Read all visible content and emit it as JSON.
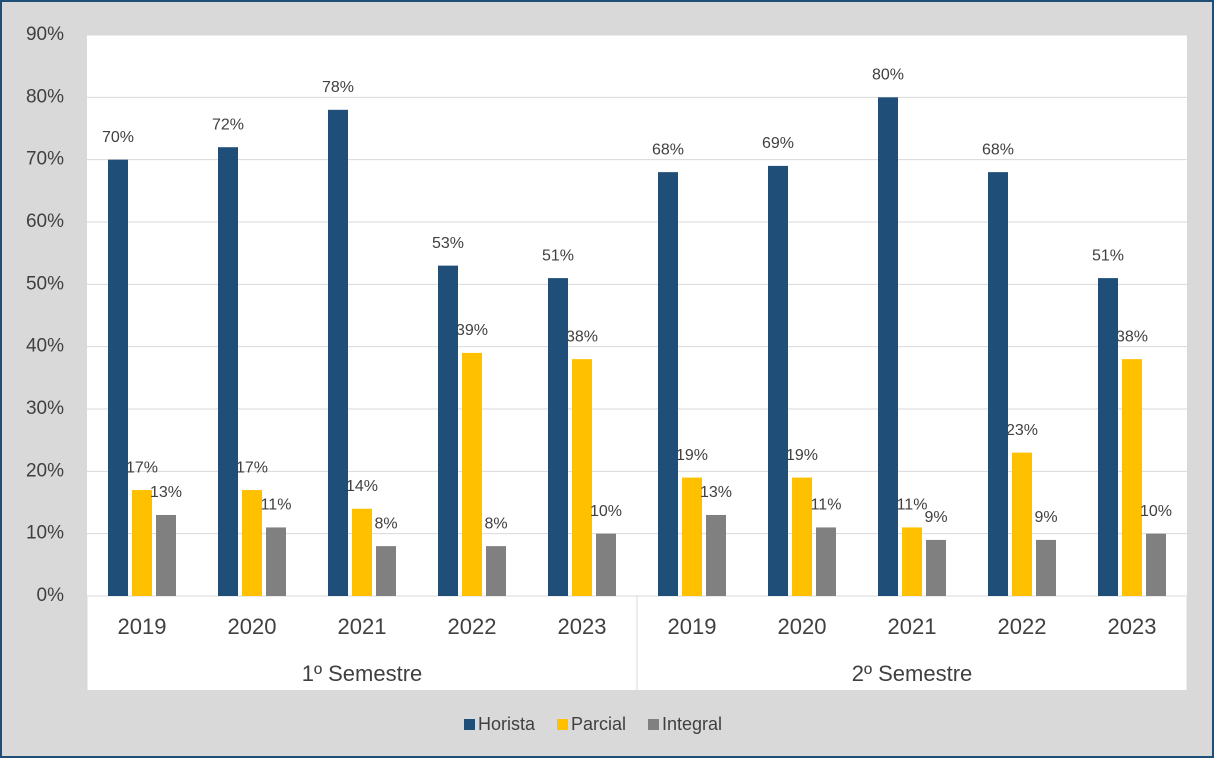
{
  "chart_data": {
    "type": "bar",
    "category_groups": [
      {
        "name": "1º Semestre",
        "categories": [
          "2019",
          "2020",
          "2021",
          "2022",
          "2023"
        ]
      },
      {
        "name": "2º Semestre",
        "categories": [
          "2019",
          "2020",
          "2021",
          "2022",
          "2023"
        ]
      }
    ],
    "series": [
      {
        "name": "Horista",
        "color": "#1f4e79",
        "values": [
          70,
          72,
          78,
          53,
          51,
          68,
          69,
          80,
          68,
          51
        ],
        "value_labels": [
          "70%",
          "72%",
          "78%",
          "53%",
          "51%",
          "68%",
          "69%",
          "80%",
          "68%",
          "51%"
        ]
      },
      {
        "name": "Parcial",
        "color": "#ffc000",
        "values": [
          17,
          17,
          14,
          39,
          38,
          19,
          19,
          11,
          23,
          38
        ],
        "value_labels": [
          "17%",
          "17%",
          "14%",
          "39%",
          "38%",
          "19%",
          "19%",
          "11%",
          "23%",
          "38%"
        ]
      },
      {
        "name": "Integral",
        "color": "#808080",
        "values": [
          13,
          11,
          8,
          8,
          10,
          13,
          11,
          9,
          9,
          10
        ],
        "value_labels": [
          "13%",
          "11%",
          "8%",
          "8%",
          "10%",
          "13%",
          "11%",
          "9%",
          "9%",
          "10%"
        ]
      }
    ],
    "ylim": [
      0,
      90
    ],
    "yticks": [
      {
        "value": 0,
        "label": "0%"
      },
      {
        "value": 10,
        "label": "10%"
      },
      {
        "value": 20,
        "label": "20%"
      },
      {
        "value": 30,
        "label": "30%"
      },
      {
        "value": 40,
        "label": "40%"
      },
      {
        "value": 50,
        "label": "50%"
      },
      {
        "value": 60,
        "label": "60%"
      },
      {
        "value": 70,
        "label": "70%"
      },
      {
        "value": 80,
        "label": "80%"
      },
      {
        "value": 90,
        "label": "90%"
      }
    ],
    "grid": true,
    "legend": "bottom"
  }
}
